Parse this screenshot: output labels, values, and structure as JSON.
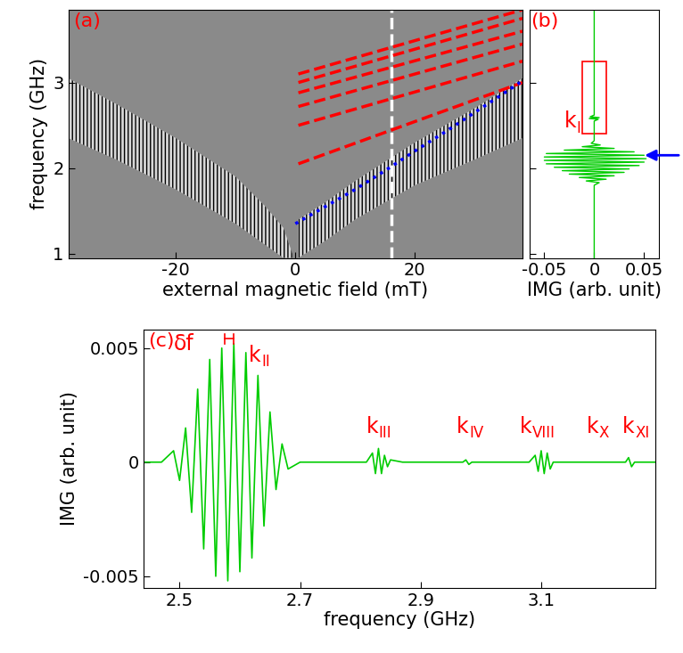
{
  "chart_data": [
    {
      "type": "line",
      "panel_label": "(a)",
      "x_label": "external magnetic field (mT)",
      "y_label": "frequency (GHz)",
      "xlim": [
        -38,
        38
      ],
      "xticks": [
        -20,
        0,
        20
      ],
      "ylim": [
        0.95,
        3.85
      ],
      "yticks": [
        1,
        2,
        3
      ],
      "background": "#8a8a8a",
      "series": [
        {
          "type": "area",
          "color": "#000000",
          "x": [
            -38,
            -30,
            -20,
            -10,
            -5,
            -2,
            -0.5
          ],
          "lower": [
            2.35,
            2.1,
            1.75,
            1.35,
            1.1,
            0.95,
            0.95
          ],
          "upper": [
            3.05,
            2.75,
            2.35,
            1.9,
            1.55,
            1.3,
            1.0
          ]
        },
        {
          "type": "area",
          "color": "#000000",
          "x": [
            0.5,
            5,
            10,
            20,
            30,
            38
          ],
          "lower": [
            0.95,
            1.15,
            1.4,
            1.8,
            2.1,
            2.35
          ],
          "upper": [
            1.4,
            1.6,
            1.85,
            2.3,
            2.7,
            3.05
          ]
        },
        {
          "type": "line",
          "color": "#ffffff",
          "line_style": "dashed",
          "x": [
            16,
            16
          ],
          "values": [
            0.95,
            3.85
          ]
        },
        {
          "type": "line",
          "color": "#ff0000",
          "line_style": "dashed",
          "x": [
            0.5,
            38
          ],
          "values": [
            3.1,
            3.85
          ]
        },
        {
          "type": "line",
          "color": "#ff0000",
          "line_style": "dashed",
          "x": [
            0.5,
            38
          ],
          "values": [
            3.0,
            3.75
          ]
        },
        {
          "type": "line",
          "color": "#ff0000",
          "line_style": "dashed",
          "x": [
            0.5,
            38
          ],
          "values": [
            2.88,
            3.6
          ]
        },
        {
          "type": "line",
          "color": "#ff0000",
          "line_style": "dashed",
          "x": [
            0.5,
            38
          ],
          "values": [
            2.72,
            3.45
          ]
        },
        {
          "type": "line",
          "color": "#ff0000",
          "line_style": "dashed",
          "x": [
            0.5,
            38
          ],
          "values": [
            2.5,
            3.25
          ]
        },
        {
          "type": "line",
          "color": "#ff0000",
          "line_style": "dashed",
          "x": [
            0.5,
            38
          ],
          "values": [
            2.05,
            3.0
          ]
        },
        {
          "type": "line",
          "color": "#0000ff",
          "line_style": "dotted",
          "x": [
            0,
            5,
            10,
            15,
            20,
            25,
            30,
            35,
            38
          ],
          "values": [
            1.35,
            1.55,
            1.75,
            1.97,
            2.2,
            2.42,
            2.65,
            2.88,
            3.02
          ]
        }
      ]
    },
    {
      "type": "line",
      "orientation": "horizontal",
      "panel_label": "(b)",
      "x_label": "IMG (arb. unit)",
      "xlim": [
        -0.065,
        0.065
      ],
      "xticks": [
        -0.05,
        0,
        0.05
      ],
      "ylim": [
        0.95,
        3.85
      ],
      "yticks": [
        1,
        2,
        3
      ],
      "tick_labels": "x",
      "series": [
        {
          "type": "line",
          "color": "#00cc00",
          "y": [
            0.95,
            1.8,
            1.83,
            1.85,
            1.87,
            1.89,
            1.91,
            1.93,
            1.95,
            1.97,
            1.99,
            2.01,
            2.03,
            2.05,
            2.07,
            2.09,
            2.11,
            2.13,
            2.15,
            2.17,
            2.19,
            2.21,
            2.23,
            2.25,
            2.27,
            2.29,
            2.32,
            2.55,
            2.57,
            2.58,
            2.59,
            2.6,
            2.62,
            3.85
          ],
          "values": [
            0,
            0,
            0.005,
            -0.008,
            0.012,
            -0.015,
            0.02,
            -0.025,
            0.03,
            -0.032,
            0.035,
            -0.04,
            0.045,
            -0.048,
            0.05,
            -0.05,
            0.052,
            -0.05,
            0.05,
            -0.048,
            0.04,
            -0.03,
            0.02,
            -0.012,
            0.006,
            -0.003,
            0,
            0,
            0.004,
            -0.005,
            0.005,
            -0.004,
            0,
            0
          ]
        }
      ],
      "highlight": {
        "color": "#ff0000",
        "x": [
          -0.012,
          0.012
        ],
        "y": [
          2.4,
          3.25
        ]
      },
      "arrow": {
        "color": "#0000ff",
        "y": 2.15
      },
      "annotations": [
        {
          "base": "k",
          "sub": "I",
          "color": "#ff0000",
          "x": -0.03,
          "y": 2.42
        }
      ]
    },
    {
      "type": "line",
      "panel_label": "(c)",
      "x_label": "frequency (GHz)",
      "y_label": "IMG (arb. unit)",
      "xlim": [
        2.44,
        3.29
      ],
      "xticks": [
        2.5,
        2.7,
        2.9,
        3.1
      ],
      "ylim": [
        -0.0055,
        0.0058
      ],
      "yticks": [
        -0.005,
        0,
        0.005
      ],
      "series": [
        {
          "type": "line",
          "color": "#00cc00",
          "x": [
            2.44,
            2.47,
            2.49,
            2.5,
            2.51,
            2.52,
            2.53,
            2.54,
            2.55,
            2.56,
            2.57,
            2.58,
            2.59,
            2.6,
            2.61,
            2.62,
            2.63,
            2.64,
            2.65,
            2.66,
            2.67,
            2.68,
            2.7,
            2.81,
            2.82,
            2.825,
            2.83,
            2.835,
            2.84,
            2.845,
            2.85,
            2.87,
            2.97,
            2.975,
            2.98,
            2.985,
            3.08,
            3.09,
            3.095,
            3.1,
            3.105,
            3.11,
            3.115,
            3.12,
            3.24,
            3.245,
            3.25,
            3.255,
            3.29
          ],
          "values": [
            0,
            0,
            0.0005,
            -0.0008,
            0.0015,
            -0.0022,
            0.0032,
            -0.0038,
            0.0045,
            -0.005,
            0.005,
            -0.0052,
            0.0052,
            -0.0048,
            0.0048,
            -0.0042,
            0.0038,
            -0.0028,
            0.0022,
            -0.0012,
            0.0008,
            -0.0003,
            0,
            0,
            0.0004,
            -0.0005,
            0.0006,
            -0.0005,
            0.0003,
            -0.0002,
            0.0001,
            0,
            0,
            0.0001,
            -0.0001,
            0,
            0,
            0.0003,
            -0.0004,
            0.0005,
            -0.0005,
            0.0004,
            -0.0003,
            0,
            0,
            0.0002,
            -0.0002,
            0,
            0
          ]
        }
      ],
      "bracket": {
        "label": "δf",
        "color": "#ff0000",
        "x": [
          2.575,
          2.59
        ],
        "y": 0.0054,
        "label_x": 2.49,
        "label_y": 0.0047
      },
      "annotations": [
        {
          "base": "k",
          "sub": "II",
          "color": "#ff0000",
          "x": 2.615,
          "y": 0.0042
        },
        {
          "base": "k",
          "sub": "III",
          "color": "#ff0000",
          "x": 2.81,
          "y": 0.0011
        },
        {
          "base": "k",
          "sub": "IV",
          "color": "#ff0000",
          "x": 2.96,
          "y": 0.0011
        },
        {
          "base": "k",
          "sub": "VIII",
          "color": "#ff0000",
          "x": 3.065,
          "y": 0.0011
        },
        {
          "base": "k",
          "sub": "X",
          "color": "#ff0000",
          "x": 3.175,
          "y": 0.0011
        },
        {
          "base": "k",
          "sub": "XI",
          "color": "#ff0000",
          "x": 3.235,
          "y": 0.0011
        }
      ]
    }
  ]
}
